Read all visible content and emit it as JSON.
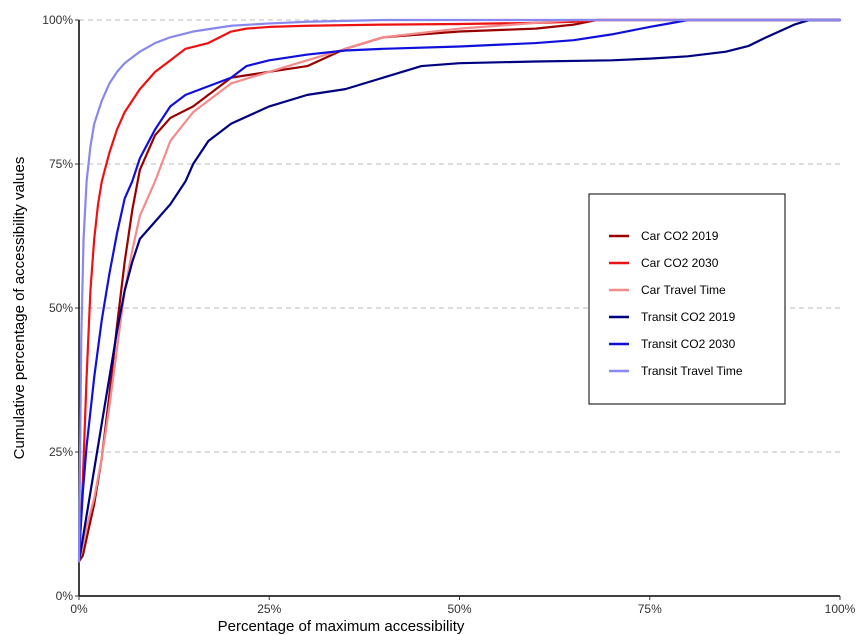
{
  "chart_data": {
    "type": "line",
    "title": "",
    "xlabel": "Percentage of maximum accessibility",
    "ylabel": "Cumulative percentage of accessibility values",
    "xlim": [
      0,
      100
    ],
    "ylim": [
      0,
      100
    ],
    "x_ticks": [
      0,
      25,
      50,
      75,
      100
    ],
    "x_tick_labels": [
      "0%",
      "25%",
      "50%",
      "75%",
      "100%"
    ],
    "y_ticks": [
      0,
      25,
      50,
      75,
      100
    ],
    "y_tick_labels": [
      "0%",
      "25%",
      "50%",
      "75%",
      "100%"
    ],
    "grid": "horizontal dashed",
    "legend_position": "right",
    "series": [
      {
        "name": "Car CO2 2019",
        "color": "#990000",
        "x": [
          0,
          0.5,
          1,
          2,
          3,
          4,
          5,
          6,
          7,
          8,
          10,
          12,
          15,
          17,
          20,
          25,
          30,
          35,
          40,
          50,
          60,
          65,
          68,
          70,
          100
        ],
        "y": [
          6,
          7,
          10,
          16,
          24,
          35,
          47,
          58,
          67,
          74,
          80,
          83,
          85,
          87,
          90,
          91,
          92,
          95,
          97,
          98,
          98.5,
          99.2,
          100,
          100,
          100
        ]
      },
      {
        "name": "Car CO2 2030",
        "color": "#ee1111",
        "x": [
          0,
          0.5,
          1,
          1.5,
          2,
          2.5,
          3,
          4,
          5,
          6,
          7,
          8,
          10,
          12,
          14,
          17,
          20,
          22,
          25,
          30,
          40,
          50,
          60,
          65,
          68,
          70,
          100
        ],
        "y": [
          6,
          20,
          38,
          53,
          62,
          68,
          72,
          77,
          81,
          84,
          86,
          88,
          91,
          93,
          95,
          96,
          98,
          98.5,
          98.8,
          99,
          99.2,
          99.3,
          99.5,
          99.7,
          100,
          100,
          100
        ]
      },
      {
        "name": "Car Travel Time",
        "color": "#f28b8b",
        "x": [
          0,
          0.5,
          1,
          2,
          3,
          4,
          5,
          6,
          7,
          8,
          10,
          12,
          15,
          17,
          20,
          25,
          30,
          35,
          40,
          50,
          60,
          65,
          68,
          70,
          100
        ],
        "y": [
          6,
          9,
          12,
          17,
          24,
          33,
          43,
          53,
          60,
          66,
          72,
          79,
          84,
          86,
          89,
          91,
          93,
          95,
          97,
          98.5,
          99.5,
          100,
          100,
          100,
          100
        ]
      },
      {
        "name": "Transit CO2 2019",
        "color": "#000080",
        "x": [
          0,
          0.5,
          1,
          2,
          3,
          4,
          5,
          6,
          7,
          8,
          10,
          12,
          14,
          15,
          16,
          17,
          20,
          25,
          30,
          35,
          40,
          45,
          50,
          60,
          70,
          75,
          80,
          85,
          88,
          90,
          92,
          94,
          96,
          100
        ],
        "y": [
          6,
          10,
          14,
          22,
          30,
          38,
          46,
          53,
          58,
          62,
          65,
          68,
          72,
          75,
          77,
          79,
          82,
          85,
          87,
          88,
          90,
          92,
          92.5,
          92.8,
          93,
          93.3,
          93.7,
          94.5,
          95.5,
          96.8,
          98,
          99.2,
          100,
          100
        ]
      },
      {
        "name": "Transit CO2 2030",
        "color": "#1010dd",
        "x": [
          0,
          0.5,
          1,
          2,
          3,
          4,
          5,
          6,
          7,
          8,
          10,
          12,
          14,
          16,
          18,
          20,
          22,
          25,
          30,
          35,
          40,
          50,
          55,
          60,
          65,
          70,
          75,
          78,
          80,
          85,
          90,
          100
        ],
        "y": [
          7,
          18,
          26,
          38,
          48,
          56,
          63,
          69,
          72,
          76,
          81,
          85,
          87,
          88,
          89,
          90,
          92,
          93,
          94,
          94.7,
          95,
          95.4,
          95.7,
          96,
          96.5,
          97.5,
          98.8,
          99.5,
          100,
          100,
          100,
          100
        ]
      },
      {
        "name": "Transit Travel Time",
        "color": "#8888ee",
        "x": [
          0,
          0.3,
          0.6,
          1,
          1.5,
          2,
          3,
          4,
          5,
          6,
          8,
          10,
          12,
          15,
          20,
          25,
          30,
          40,
          50,
          60,
          100
        ],
        "y": [
          6,
          45,
          62,
          72,
          78,
          82,
          86,
          89,
          91,
          92.5,
          94.5,
          96,
          97,
          98,
          99,
          99.4,
          99.7,
          100,
          100,
          100,
          100
        ]
      }
    ]
  }
}
